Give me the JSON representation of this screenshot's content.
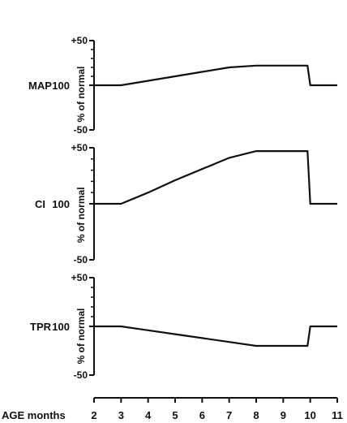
{
  "chart_data": [
    {
      "type": "line",
      "panel_label": "MAP",
      "ylabel": "% of normal",
      "yticks": [
        "+50",
        "100",
        "-50"
      ],
      "ylim": [
        -50,
        50
      ],
      "x": [
        2,
        3,
        4,
        5,
        6,
        7,
        8,
        9,
        9.9,
        10,
        11
      ],
      "values": [
        0,
        0,
        5,
        10,
        15,
        20,
        22,
        22,
        22,
        0,
        0
      ]
    },
    {
      "type": "line",
      "panel_label": "CI",
      "ylabel": "% of normal",
      "yticks": [
        "+50",
        "100",
        "-50"
      ],
      "ylim": [
        -50,
        50
      ],
      "x": [
        2,
        3,
        4,
        5,
        6,
        7,
        8,
        9,
        9.9,
        10,
        11
      ],
      "values": [
        0,
        0,
        10,
        21,
        31,
        41,
        47,
        47,
        47,
        0,
        0
      ]
    },
    {
      "type": "line",
      "panel_label": "TPR",
      "ylabel": "% of normal",
      "yticks": [
        "+50",
        "100",
        "-50"
      ],
      "ylim": [
        -50,
        50
      ],
      "x": [
        2,
        3,
        4,
        5,
        6,
        7,
        8,
        9,
        9.9,
        10,
        11
      ],
      "values": [
        0,
        0,
        -4,
        -8,
        -12,
        -16,
        -20,
        -20,
        -20,
        0,
        0
      ]
    }
  ],
  "x_axis": {
    "label": "AGE months",
    "ticks": [
      2,
      3,
      4,
      5,
      6,
      7,
      8,
      9,
      10,
      11
    ],
    "range": [
      2,
      11
    ]
  },
  "colors": {
    "line": "#111111"
  }
}
